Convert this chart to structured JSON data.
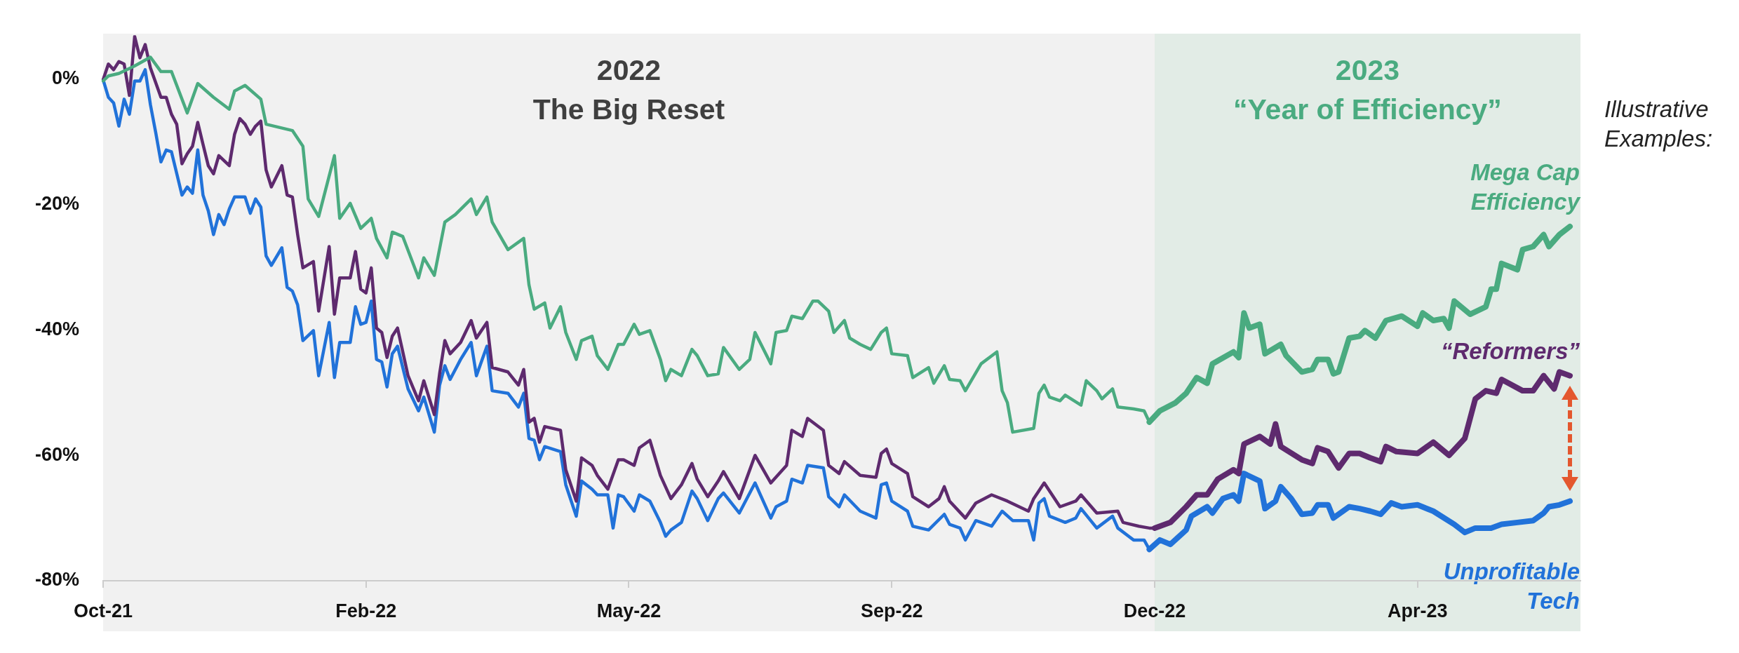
{
  "chart_data": {
    "type": "line",
    "categories": [
      "Oct-21",
      null,
      null,
      null,
      null,
      null,
      null,
      null,
      null,
      null,
      null,
      null,
      null,
      null,
      null,
      null,
      null,
      null,
      null,
      null,
      null,
      null,
      null,
      null,
      null,
      null,
      null,
      null,
      null,
      null,
      null,
      null,
      null,
      null,
      null,
      null,
      null,
      null,
      null,
      null,
      null,
      null,
      null,
      null,
      null,
      null,
      null,
      null,
      null,
      null,
      "Feb-22",
      null,
      null,
      null,
      null,
      null,
      null,
      null,
      null,
      null,
      null,
      null,
      null,
      null,
      null,
      null,
      null,
      null,
      null,
      null,
      null,
      null,
      null,
      null,
      null,
      null,
      null,
      null,
      null,
      null,
      null,
      null,
      null,
      null,
      null,
      null,
      null,
      null,
      null,
      null,
      null,
      null,
      null,
      null,
      null,
      null,
      null,
      null,
      null,
      null,
      "May-22",
      null,
      null,
      null,
      null,
      null,
      null,
      null,
      null,
      null,
      null,
      null,
      null,
      null,
      null,
      null,
      null,
      null,
      null,
      null,
      null,
      null,
      null,
      null,
      null,
      null,
      null,
      null,
      null,
      null,
      null,
      null,
      null,
      null,
      null,
      null,
      null,
      null,
      null,
      null,
      null,
      null,
      null,
      null,
      null,
      null,
      null,
      null,
      null,
      null,
      "Sep-22",
      null,
      null,
      null,
      null,
      null,
      null,
      null,
      null,
      null,
      null,
      null,
      null,
      null,
      null,
      null,
      null,
      null,
      null,
      null,
      null,
      null,
      null,
      null,
      null,
      null,
      null,
      null,
      null,
      null,
      null,
      null,
      null,
      null,
      null,
      null,
      null,
      null,
      null,
      null,
      null,
      null,
      null,
      null,
      null,
      null,
      null,
      null,
      null,
      null,
      "Dec-22",
      null,
      null,
      null,
      null,
      null,
      null,
      null,
      null,
      null,
      null,
      null,
      null,
      null,
      null,
      null,
      null,
      null,
      null,
      null,
      null,
      null,
      null,
      null,
      null,
      null,
      null,
      null,
      null,
      null,
      null,
      null,
      null,
      null,
      null,
      null,
      null,
      null,
      null,
      null,
      null,
      null,
      null,
      null,
      null,
      null,
      null,
      null,
      null,
      null,
      "Apr-23",
      null,
      null,
      null,
      null,
      null,
      null,
      null,
      null,
      null,
      null,
      null,
      null,
      null,
      null,
      null,
      null,
      null,
      null,
      null,
      null,
      null,
      null,
      null,
      null,
      null,
      null,
      null,
      null,
      null,
      null,
      null
    ],
    "ylim": [
      -80,
      7
    ],
    "yticks": [
      {
        "value": 0,
        "label": "0%"
      },
      {
        "value": -20,
        "label": "-20%"
      },
      {
        "value": -40,
        "label": "-40%"
      },
      {
        "value": -60,
        "label": "-60%"
      },
      {
        "value": -80,
        "label": "-80%"
      }
    ],
    "grid": false,
    "legend": false,
    "marker": "none",
    "line_style": "solid",
    "annotations": [
      "2022\nThe Big Reset",
      "2023\n“Year of Efficiency”",
      "Illustrative\nExamples:"
    ],
    "series": [
      {
        "name": "Mega Cap\nEfficiency",
        "color": "#4aab80",
        "values": [
          -0.3,
          0.5,
          null,
          0.9,
          null,
          null,
          2.1,
          null,
          null,
          3.5,
          null,
          1.2,
          null,
          1.2,
          null,
          null,
          -5.4,
          null,
          -0.7,
          null,
          null,
          -2.9,
          null,
          null,
          -4.8,
          -1.9,
          null,
          -1,
          null,
          null,
          -3.2,
          -7.2,
          null,
          null,
          null,
          null,
          -8.2,
          null,
          -10.7,
          -19.1,
          null,
          -21.9,
          null,
          null,
          -12.2,
          -22.2,
          null,
          -19.8,
          null,
          -23.8,
          null,
          -22.2,
          -25.4,
          null,
          -28.5,
          -24.4,
          null,
          -25.1,
          null,
          null,
          -31.7,
          -28.5,
          null,
          -31.3,
          null,
          -22.8,
          null,
          -21.6,
          null,
          null,
          -19.1,
          -21.6,
          null,
          -18.8,
          -22.8,
          null,
          null,
          -27.2,
          null,
          null,
          -25.4,
          -32.8,
          -36.7,
          null,
          -35.7,
          -39.7,
          null,
          -36.3,
          -40.4,
          null,
          -44.7,
          -41.7,
          null,
          -41,
          -44.1,
          null,
          -46.3,
          null,
          -42.3,
          -42.3,
          null,
          -39.1,
          -40.7,
          null,
          -40.1,
          null,
          -44.7,
          -48.1,
          -46.3,
          null,
          -47.3,
          null,
          -43.1,
          -44.1,
          null,
          -47.3,
          null,
          -47,
          -42.8,
          null,
          null,
          -46.3,
          null,
          -44.7,
          -40.4,
          null,
          null,
          -45.4,
          -40.4,
          null,
          -40.1,
          -37.8,
          null,
          -38.2,
          null,
          -35.4,
          -35.4,
          null,
          -37,
          -40.4,
          null,
          -38.5,
          -41.3,
          null,
          -42.3,
          null,
          -43.1,
          null,
          -40.4,
          -39.7,
          -43.8,
          null,
          null,
          -44.1,
          -47.6,
          null,
          null,
          -46,
          -48.5,
          null,
          -45.7,
          -47.9,
          null,
          -48.1,
          -49.7,
          null,
          null,
          -45.4,
          null,
          null,
          -43.5,
          -49.7,
          -51.6,
          -56.3,
          null,
          null,
          null,
          -55.7,
          -50.1,
          -48.8,
          -50.7,
          null,
          -51.3,
          -50.4,
          null,
          null,
          -52,
          -48.1,
          null,
          -49.7,
          -51,
          null,
          -49.4,
          -52.3,
          null,
          null,
          -52.6,
          null,
          -52.9,
          -54.7,
          null,
          -52.9,
          null,
          null,
          -51.6,
          null,
          -50.1,
          null,
          -47.6,
          null,
          -48.5,
          -45.4,
          null,
          null,
          null,
          -43.5,
          -44.4,
          -37.3,
          -39.7,
          null,
          -39.1,
          -43.8,
          null,
          null,
          -42.3,
          -44.1,
          null,
          null,
          -46.7,
          null,
          -46.3,
          -44.7,
          null,
          -44.7,
          -47,
          -46.7,
          null,
          -41.3,
          null,
          -41,
          -40.1,
          null,
          -41.3,
          null,
          -38.5,
          null,
          null,
          -37.8,
          null,
          null,
          -39.4,
          -37.3,
          null,
          -38.5,
          null,
          -38.2,
          -39.7,
          -35.4,
          null,
          null,
          -37.5,
          null,
          null,
          -36.3,
          -33.5,
          -33.5,
          -29.4,
          null,
          null,
          -30.4,
          -27.2,
          null,
          -26.7,
          null,
          -24.8,
          -26.7,
          null,
          -24.8,
          null,
          -23.5,
          null,
          null
        ]
      },
      {
        "name": "“Reformers”",
        "color": "#5e2a6e",
        "values": [
          -0.1,
          2.4,
          1.5,
          2.8,
          2.4,
          -2.6,
          6.8,
          3.4,
          5.5,
          1.8,
          null,
          -2.9,
          -2.9,
          -5.6,
          -7.2,
          -13.5,
          -11.9,
          -10.7,
          -6.9,
          -10.4,
          -13.8,
          -15.1,
          -12.2,
          null,
          -13.8,
          -8.8,
          -6.3,
          -7.2,
          -8.8,
          -7.5,
          -6.7,
          -14.5,
          -17.2,
          null,
          -13.8,
          -18.5,
          -18.8,
          -24.8,
          -30.1,
          null,
          -29.1,
          -37,
          null,
          -26.7,
          -37.5,
          -31.7,
          null,
          -31.7,
          -27.5,
          -33.5,
          -34.1,
          -30.1,
          -39.7,
          -40.4,
          -44.4,
          -41,
          -39.7,
          null,
          -47.3,
          null,
          -51.3,
          -48.1,
          null,
          -53.5,
          -47,
          -41.7,
          -43.8,
          null,
          -42,
          null,
          -38.5,
          -41.3,
          null,
          -38.8,
          -46,
          null,
          null,
          -46.7,
          null,
          -48.8,
          -46.3,
          -54.7,
          -54.1,
          -57.9,
          -55.4,
          null,
          null,
          -56,
          -62.3,
          null,
          -67.3,
          -60.4,
          null,
          -61.6,
          -63.2,
          null,
          -65.4,
          null,
          -60.7,
          -60.7,
          null,
          -61.6,
          -58.8,
          null,
          -57.6,
          null,
          -63.2,
          null,
          -66.9,
          null,
          -64.7,
          null,
          -61.3,
          -63.8,
          null,
          -66.6,
          null,
          -64.1,
          -62.6,
          null,
          null,
          -66.9,
          null,
          null,
          -60,
          null,
          null,
          -64.4,
          null,
          null,
          -61.6,
          -56,
          null,
          -57,
          -54.1,
          null,
          null,
          -56,
          -61.6,
          null,
          -62.9,
          -61,
          null,
          null,
          -63.2,
          null,
          null,
          -63.5,
          -59.7,
          -59,
          -61.3,
          null,
          null,
          -62.9,
          -66.6,
          null,
          null,
          -68.2,
          null,
          -66.9,
          -65,
          -67.3,
          null,
          null,
          -70,
          null,
          -67.6,
          null,
          null,
          -66.3,
          null,
          null,
          -67.3,
          null,
          null,
          null,
          -68.9,
          -66.9,
          null,
          -64.4,
          null,
          null,
          -68.2,
          null,
          null,
          -67.3,
          -66.3,
          null,
          null,
          -69.2,
          null,
          null,
          null,
          -68.9,
          -70.7,
          null,
          null,
          -71.3,
          null,
          -71.6,
          -71.6,
          null,
          null,
          -70.7,
          null,
          null,
          -68.2,
          null,
          -66.3,
          null,
          -66.3,
          null,
          -63.8,
          null,
          null,
          -62.3,
          -62.9,
          -58.2,
          null,
          null,
          -57,
          null,
          -58.2,
          -55,
          -58.6,
          null,
          null,
          null,
          -60.7,
          null,
          -61.3,
          -58.8,
          null,
          -59.4,
          null,
          -62,
          null,
          -59.7,
          null,
          -59.7,
          null,
          -60.4,
          null,
          -61,
          -58.6,
          null,
          -59.4,
          null,
          null,
          null,
          -59.7,
          null,
          null,
          -57.9,
          null,
          null,
          -60,
          null,
          null,
          -57.3,
          null,
          -51,
          null,
          -49.7,
          null,
          -50.1,
          -47.9,
          null,
          null,
          null,
          -49.7,
          null,
          -49.7,
          null,
          -47.3,
          null,
          -49.4,
          -46.7,
          null,
          -47.3,
          null,
          null
        ]
      },
      {
        "name": "Unprofitable\nTech",
        "color": "#2172d9",
        "values": [
          -0.1,
          -2.9,
          -3.8,
          -7.5,
          -3.2,
          -5.6,
          -0.3,
          -0.3,
          1.5,
          -4.1,
          -8.5,
          -13.2,
          -11.3,
          -11.6,
          null,
          -18.5,
          -17.2,
          -18.2,
          -11.3,
          -18.5,
          -21,
          -24.8,
          -21.6,
          -23.2,
          -20.7,
          -18.8,
          null,
          -18.8,
          -21.4,
          -19.1,
          -20.4,
          -28.2,
          -29.7,
          null,
          -26.9,
          -33.2,
          -33.8,
          -36,
          -41.7,
          null,
          -40.1,
          -47.3,
          null,
          -38.8,
          -47.6,
          -42,
          null,
          -42,
          -36.3,
          -39.1,
          -38.8,
          -35.4,
          -44.7,
          -45.1,
          -49.1,
          -43.8,
          -42.6,
          null,
          -49.4,
          null,
          -52.9,
          -50.7,
          null,
          -56.3,
          -48.8,
          -45.7,
          -47.9,
          null,
          -44.7,
          null,
          -42,
          -47.3,
          null,
          -42.6,
          -49.7,
          null,
          null,
          -50.1,
          null,
          -52.3,
          -50.1,
          -57.3,
          -57.6,
          -60.7,
          -58.6,
          null,
          null,
          -59.4,
          -64.7,
          null,
          -69.7,
          -64.1,
          null,
          -65.4,
          -66.3,
          null,
          -66.3,
          -71.6,
          -66.3,
          -66.6,
          null,
          -68.9,
          -66.3,
          null,
          -67.3,
          null,
          -70.7,
          -72.9,
          -71.9,
          null,
          -70.7,
          null,
          -65.7,
          -66.9,
          null,
          -70.4,
          null,
          -66.9,
          -66,
          null,
          null,
          -69.2,
          null,
          null,
          -64.4,
          null,
          null,
          -70,
          -68.2,
          null,
          -67.3,
          -63.8,
          null,
          -64.4,
          -61.6,
          null,
          null,
          -62,
          -66.6,
          null,
          -68.2,
          -66.3,
          null,
          null,
          -68.9,
          null,
          null,
          -70,
          -64.7,
          -64.4,
          -67.3,
          null,
          null,
          -68.9,
          -71.3,
          null,
          null,
          -71.9,
          null,
          null,
          -69.4,
          -71,
          null,
          -71.6,
          -73.5,
          null,
          -70.4,
          null,
          null,
          -71.3,
          null,
          -68.9,
          null,
          -70.4,
          null,
          null,
          -70.4,
          -73.5,
          -67.6,
          -66.9,
          -69.7,
          null,
          null,
          -70.7,
          null,
          -70,
          -68.5,
          null,
          null,
          -71.6,
          null,
          null,
          -69.7,
          -71.6,
          null,
          null,
          -73.5,
          null,
          -73.5,
          -75,
          null,
          -73.5,
          null,
          -74.2,
          null,
          null,
          -71.9,
          -69.7,
          null,
          null,
          -68.2,
          -69.2,
          null,
          -66.9,
          null,
          -66.3,
          -67.3,
          -62.9,
          null,
          null,
          -64.1,
          -68.5,
          null,
          -67.3,
          -65,
          null,
          -66.9,
          null,
          -69.4,
          null,
          -69.2,
          -67.9,
          null,
          -67.9,
          -70,
          null,
          null,
          -68.2,
          null,
          -68.5,
          null,
          -68.9,
          null,
          -69.4,
          null,
          -67.6,
          null,
          -68.2,
          null,
          null,
          -67.9,
          null,
          null,
          -68.9,
          null,
          null,
          null,
          -71,
          null,
          -72.3,
          null,
          -71.6,
          null,
          null,
          -71.6,
          null,
          -71,
          null,
          null,
          -70.7,
          null,
          null,
          -70.4,
          null,
          -69.2,
          -68.2,
          null,
          -67.9,
          null,
          -67.3,
          null,
          null
        ]
      }
    ]
  }
}
